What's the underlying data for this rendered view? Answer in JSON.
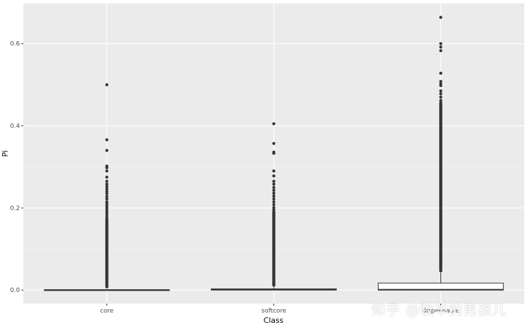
{
  "chart_data": {
    "type": "boxplot",
    "xlabel": "Class",
    "ylabel": "Pi",
    "categories": [
      "core",
      "softcore",
      "dispensable"
    ],
    "ylim": [
      -0.033,
      0.698
    ],
    "yticks": [
      0.0,
      0.2,
      0.4,
      0.6
    ],
    "ytick_labels": [
      "0.0",
      "0.2",
      "0.4",
      "0.6"
    ],
    "grid": true,
    "boxes": [
      {
        "category": "core",
        "q1": 0.0,
        "median": 0.0,
        "q3": 0.001,
        "whisker_low": 0.0,
        "whisker_high": 0.001,
        "outliers": [
          0.5,
          0.366,
          0.34,
          0.302,
          0.298,
          0.29,
          0.275,
          0.265,
          0.258,
          0.252,
          0.246,
          0.24,
          0.235,
          0.228,
          0.222,
          0.215,
          0.21,
          0.205,
          0.2,
          0.195,
          0.19,
          0.185,
          0.18,
          0.175
        ],
        "outlier_band": [
          0.004,
          0.175
        ]
      },
      {
        "category": "softcore",
        "q1": 0.0,
        "median": 0.002,
        "q3": 0.003,
        "whisker_low": 0.0,
        "whisker_high": 0.007,
        "outliers": [
          0.405,
          0.357,
          0.336,
          0.333,
          0.29,
          0.278,
          0.265,
          0.258,
          0.25,
          0.243,
          0.236,
          0.229,
          0.222,
          0.215,
          0.208,
          0.201,
          0.196
        ],
        "outlier_band": [
          0.008,
          0.195
        ]
      },
      {
        "category": "dispensable",
        "q1": 0.0,
        "median": 0.001,
        "q3": 0.017,
        "whisker_low": 0.0,
        "whisker_high": 0.042,
        "outliers": [
          0.664,
          0.6,
          0.592,
          0.583,
          0.528,
          0.508,
          0.502,
          0.498,
          0.485,
          0.478,
          0.47,
          0.462
        ],
        "outlier_band": [
          0.043,
          0.46
        ]
      }
    ]
  },
  "watermark": "知乎 @牧羊的男孩儿"
}
